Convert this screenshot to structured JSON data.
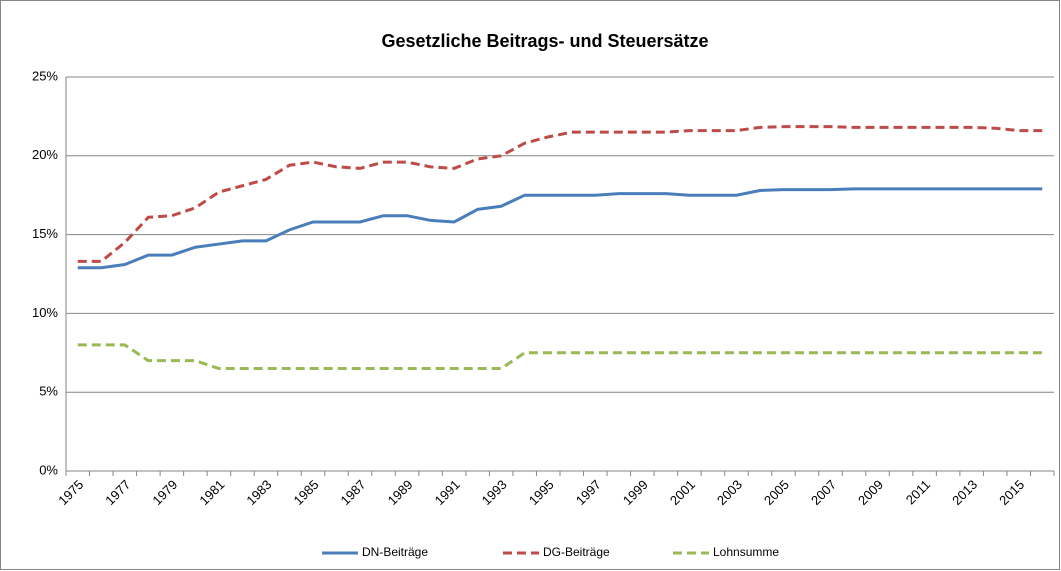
{
  "chart_data": {
    "type": "line",
    "title": "Gesetzliche Beitrags- und Steuersätze",
    "categories": [
      "1975",
      null,
      "1977",
      null,
      "1979",
      null,
      "1981",
      null,
      "1983",
      null,
      "1985",
      null,
      "1987",
      null,
      "1989",
      null,
      "1991",
      null,
      "1993",
      null,
      "1995",
      null,
      "1997",
      null,
      "1999",
      null,
      "2001",
      null,
      "2003",
      null,
      "2005",
      null,
      "2007",
      null,
      "2009",
      null,
      "2011",
      null,
      "2013",
      null,
      "2015",
      null
    ],
    "series": [
      {
        "name": "DN-Beiträge",
        "color": "#4a7ebb",
        "dash": "solid",
        "values": [
          12.9,
          12.9,
          13.1,
          13.7,
          13.7,
          14.2,
          14.4,
          14.6,
          14.6,
          15.3,
          15.8,
          15.8,
          15.8,
          16.2,
          16.2,
          15.9,
          15.8,
          16.6,
          16.8,
          17.5,
          17.5,
          17.5,
          17.5,
          17.6,
          17.6,
          17.6,
          17.5,
          17.5,
          17.5,
          17.8,
          17.85,
          17.85,
          17.85,
          17.9,
          17.9,
          17.9,
          17.9,
          17.9,
          17.9,
          17.9,
          17.9,
          17.9
        ]
      },
      {
        "name": "DG-Beiträge",
        "color": "#be4b48",
        "dash": "dashed",
        "values": [
          13.3,
          13.3,
          14.5,
          16.1,
          16.2,
          16.7,
          17.7,
          18.1,
          18.5,
          19.4,
          19.6,
          19.3,
          19.2,
          19.6,
          19.6,
          19.3,
          19.2,
          19.8,
          20.0,
          20.8,
          21.2,
          21.5,
          21.5,
          21.5,
          21.5,
          21.5,
          21.6,
          21.6,
          21.6,
          21.8,
          21.85,
          21.85,
          21.85,
          21.8,
          21.8,
          21.8,
          21.8,
          21.8,
          21.8,
          21.75,
          21.6,
          21.6
        ]
      },
      {
        "name": "Lohnsumme",
        "color": "#98b954",
        "dash": "dashed",
        "values": [
          8,
          8,
          8,
          7,
          7,
          7,
          6.5,
          6.5,
          6.5,
          6.5,
          6.5,
          6.5,
          6.5,
          6.5,
          6.5,
          6.5,
          6.5,
          6.5,
          6.5,
          7.5,
          7.5,
          7.5,
          7.5,
          7.5,
          7.5,
          7.5,
          7.5,
          7.5,
          7.5,
          7.5,
          7.5,
          7.5,
          7.5,
          7.5,
          7.5,
          7.5,
          7.5,
          7.5,
          7.5,
          7.5,
          7.5,
          7.5
        ]
      }
    ],
    "ylim": [
      0,
      25
    ],
    "yticks": [
      {
        "value": 0,
        "label": "0%"
      },
      {
        "value": 5,
        "label": "5%"
      },
      {
        "value": 10,
        "label": "10%"
      },
      {
        "value": 15,
        "label": "15%"
      },
      {
        "value": 20,
        "label": "20%"
      },
      {
        "value": 25,
        "label": "25%"
      }
    ],
    "grid": true,
    "legend": "bottom"
  }
}
